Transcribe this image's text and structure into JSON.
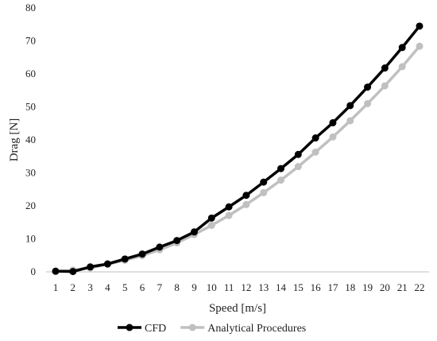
{
  "chart_data": {
    "type": "line",
    "title": "",
    "xlabel": "Speed [m/s]",
    "ylabel": "Drag [N]",
    "ylim": [
      0,
      80
    ],
    "yticks": [
      0,
      10,
      20,
      30,
      40,
      50,
      60,
      70,
      80
    ],
    "grid": false,
    "legend_position": "bottom",
    "categories": [
      1,
      2,
      3,
      4,
      5,
      6,
      7,
      8,
      9,
      10,
      11,
      12,
      13,
      14,
      15,
      16,
      17,
      18,
      19,
      20,
      21,
      22
    ],
    "series": [
      {
        "name": "CFD",
        "color": "#000000",
        "values": [
          0.2,
          0.1,
          1.5,
          2.4,
          3.9,
          5.4,
          7.5,
          9.5,
          12.1,
          16.3,
          19.7,
          23.2,
          27.2,
          31.3,
          35.6,
          40.6,
          45.2,
          50.4,
          56.0,
          61.8,
          68.0,
          74.5
        ]
      },
      {
        "name": "Analytical Procedures",
        "color": "#c0c0c0",
        "values": [
          0.1,
          0.5,
          1.2,
          2.3,
          3.5,
          4.9,
          6.7,
          8.8,
          11.3,
          14.1,
          17.1,
          20.4,
          24.0,
          27.8,
          31.9,
          36.3,
          40.9,
          45.8,
          51.0,
          56.4,
          62.2,
          68.4
        ]
      }
    ]
  }
}
